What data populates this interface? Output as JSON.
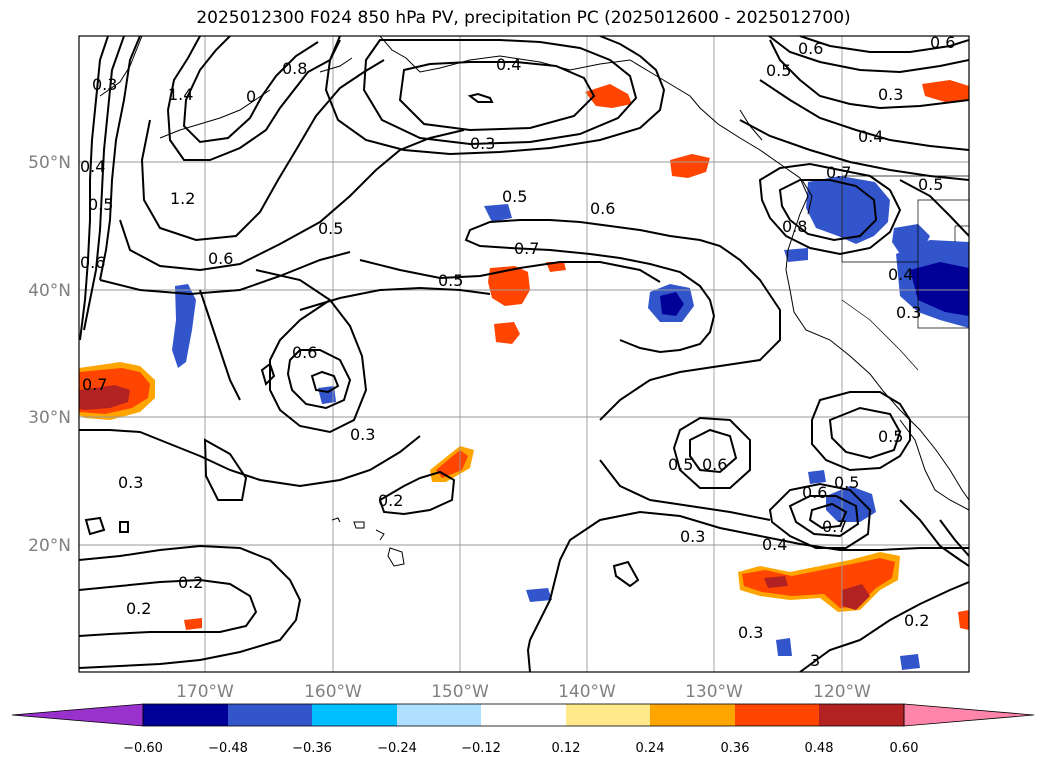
{
  "title": "2025012300 F024 850 hPa PV, precipitation PC (2025012600 - 2025012700)",
  "lat_labels": [
    "50°N",
    "40°N",
    "30°N",
    "20°N"
  ],
  "lon_labels": [
    "170°W",
    "160°W",
    "150°W",
    "140°W",
    "130°W",
    "120°W"
  ],
  "colorbar": {
    "colors": [
      "#9932cc",
      "#000099",
      "#3355cc",
      "#00bfff",
      "#b0e0ff",
      "#ffffff",
      "#ffe98a",
      "#ffa500",
      "#ff4500",
      "#b22222",
      "#ff85aa"
    ],
    "tick_labels": [
      "−0.60",
      "−0.48",
      "−0.36",
      "−0.24",
      "−0.12",
      "0.12",
      "0.24",
      "0.36",
      "0.48",
      "0.60"
    ]
  },
  "contour_labels": [
    "0.3",
    "1.4",
    "0.8",
    "0",
    "0.4",
    "0.3",
    "0.6",
    "0.5",
    "0.4",
    "0.5",
    "0.3",
    "0.6",
    "1.2",
    "0.5",
    "0.6",
    "0.4",
    "0.6",
    "0.5",
    "0.7",
    "0.8",
    "0.7",
    "0.5",
    "0.6",
    "0.5",
    "0.4",
    "0.3",
    "0.7",
    "0.6",
    "0.3",
    "0.3",
    "0.2",
    "0.5",
    "0.6",
    "0.6",
    "0.5",
    "0.7",
    "0.3",
    "0.4",
    "0.5",
    "0.2",
    "0.2",
    "0.3",
    "3",
    "0.2"
  ]
}
